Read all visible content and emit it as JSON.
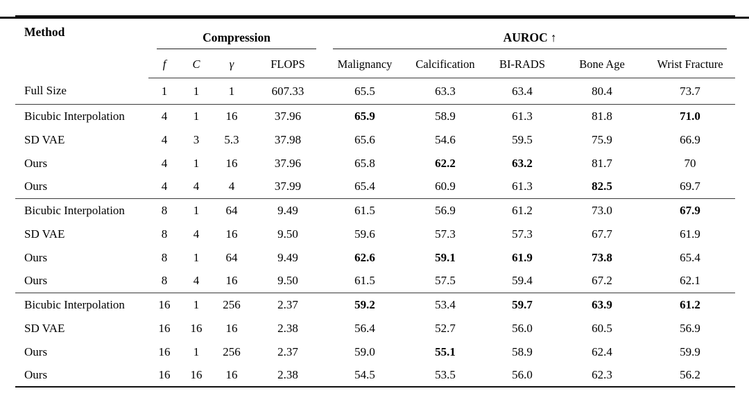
{
  "colors": {
    "background": "#ffffff",
    "text": "#000000",
    "rule_heavy": "#101010",
    "rule_light": "#3a3a3a"
  },
  "table": {
    "method_header": "Method",
    "groups": [
      {
        "label": "Compression",
        "suffix": ""
      },
      {
        "label": "AUROC",
        "suffix": "↑"
      }
    ],
    "subcolumns": [
      {
        "label": "f",
        "italic": true
      },
      {
        "label": "C",
        "italic": true
      },
      {
        "label": "γ",
        "italic": true
      },
      {
        "label": "FLOPS",
        "italic": false
      },
      {
        "label": "Malignancy",
        "italic": false
      },
      {
        "label": "Calcification",
        "italic": false
      },
      {
        "label": "BI-RADS",
        "italic": false
      },
      {
        "label": "Bone Age",
        "italic": false
      },
      {
        "label": "Wrist Fracture",
        "italic": false
      }
    ],
    "sections": [
      {
        "rows": [
          {
            "method": "Full Size",
            "cells": [
              {
                "v": "1"
              },
              {
                "v": "1"
              },
              {
                "v": "1"
              },
              {
                "v": "607.33"
              },
              {
                "v": "65.5"
              },
              {
                "v": "63.3"
              },
              {
                "v": "63.4"
              },
              {
                "v": "80.4"
              },
              {
                "v": "73.7"
              }
            ]
          }
        ]
      },
      {
        "rows": [
          {
            "method": "Bicubic Interpolation",
            "cells": [
              {
                "v": "4"
              },
              {
                "v": "1"
              },
              {
                "v": "16"
              },
              {
                "v": "37.96"
              },
              {
                "v": "65.9",
                "b": true
              },
              {
                "v": "58.9"
              },
              {
                "v": "61.3"
              },
              {
                "v": "81.8"
              },
              {
                "v": "71.0",
                "b": true
              }
            ]
          },
          {
            "method": "SD VAE",
            "cells": [
              {
                "v": "4"
              },
              {
                "v": "3"
              },
              {
                "v": "5.3"
              },
              {
                "v": "37.98"
              },
              {
                "v": "65.6"
              },
              {
                "v": "54.6"
              },
              {
                "v": "59.5"
              },
              {
                "v": "75.9"
              },
              {
                "v": "66.9"
              }
            ]
          },
          {
            "method": "Ours",
            "cells": [
              {
                "v": "4"
              },
              {
                "v": "1"
              },
              {
                "v": "16"
              },
              {
                "v": "37.96"
              },
              {
                "v": "65.8"
              },
              {
                "v": "62.2",
                "b": true
              },
              {
                "v": "63.2",
                "b": true
              },
              {
                "v": "81.7"
              },
              {
                "v": "70"
              }
            ]
          },
          {
            "method": "Ours",
            "cells": [
              {
                "v": "4"
              },
              {
                "v": "4"
              },
              {
                "v": "4"
              },
              {
                "v": "37.99"
              },
              {
                "v": "65.4"
              },
              {
                "v": "60.9"
              },
              {
                "v": "61.3"
              },
              {
                "v": "82.5",
                "b": true
              },
              {
                "v": "69.7"
              }
            ]
          }
        ]
      },
      {
        "rows": [
          {
            "method": "Bicubic Interpolation",
            "cells": [
              {
                "v": "8"
              },
              {
                "v": "1"
              },
              {
                "v": "64"
              },
              {
                "v": "9.49"
              },
              {
                "v": "61.5"
              },
              {
                "v": "56.9"
              },
              {
                "v": "61.2"
              },
              {
                "v": "73.0"
              },
              {
                "v": "67.9",
                "b": true
              }
            ]
          },
          {
            "method": "SD VAE",
            "cells": [
              {
                "v": "8"
              },
              {
                "v": "4"
              },
              {
                "v": "16"
              },
              {
                "v": "9.50"
              },
              {
                "v": "59.6"
              },
              {
                "v": "57.3"
              },
              {
                "v": "57.3"
              },
              {
                "v": "67.7"
              },
              {
                "v": "61.9"
              }
            ]
          },
          {
            "method": "Ours",
            "cells": [
              {
                "v": "8"
              },
              {
                "v": "1"
              },
              {
                "v": "64"
              },
              {
                "v": "9.49"
              },
              {
                "v": "62.6",
                "b": true
              },
              {
                "v": "59.1",
                "b": true
              },
              {
                "v": "61.9",
                "b": true
              },
              {
                "v": "73.8",
                "b": true
              },
              {
                "v": "65.4"
              }
            ]
          },
          {
            "method": "Ours",
            "cells": [
              {
                "v": "8"
              },
              {
                "v": "4"
              },
              {
                "v": "16"
              },
              {
                "v": "9.50"
              },
              {
                "v": "61.5"
              },
              {
                "v": "57.5"
              },
              {
                "v": "59.4"
              },
              {
                "v": "67.2"
              },
              {
                "v": "62.1"
              }
            ]
          }
        ]
      },
      {
        "rows": [
          {
            "method": "Bicubic Interpolation",
            "cells": [
              {
                "v": "16"
              },
              {
                "v": "1"
              },
              {
                "v": "256"
              },
              {
                "v": "2.37"
              },
              {
                "v": "59.2",
                "b": true
              },
              {
                "v": "53.4"
              },
              {
                "v": "59.7",
                "b": true
              },
              {
                "v": "63.9",
                "b": true
              },
              {
                "v": "61.2",
                "b": true
              }
            ]
          },
          {
            "method": "SD VAE",
            "cells": [
              {
                "v": "16"
              },
              {
                "v": "16"
              },
              {
                "v": "16"
              },
              {
                "v": "2.38"
              },
              {
                "v": "56.4"
              },
              {
                "v": "52.7"
              },
              {
                "v": "56.0"
              },
              {
                "v": "60.5"
              },
              {
                "v": "56.9"
              }
            ]
          },
          {
            "method": "Ours",
            "cells": [
              {
                "v": "16"
              },
              {
                "v": "1"
              },
              {
                "v": "256"
              },
              {
                "v": "2.37"
              },
              {
                "v": "59.0"
              },
              {
                "v": "55.1",
                "b": true
              },
              {
                "v": "58.9"
              },
              {
                "v": "62.4"
              },
              {
                "v": "59.9"
              }
            ]
          },
          {
            "method": "Ours",
            "cells": [
              {
                "v": "16"
              },
              {
                "v": "16"
              },
              {
                "v": "16"
              },
              {
                "v": "2.38"
              },
              {
                "v": "54.5"
              },
              {
                "v": "53.5"
              },
              {
                "v": "56.0"
              },
              {
                "v": "62.3"
              },
              {
                "v": "56.2"
              }
            ]
          }
        ]
      }
    ]
  }
}
